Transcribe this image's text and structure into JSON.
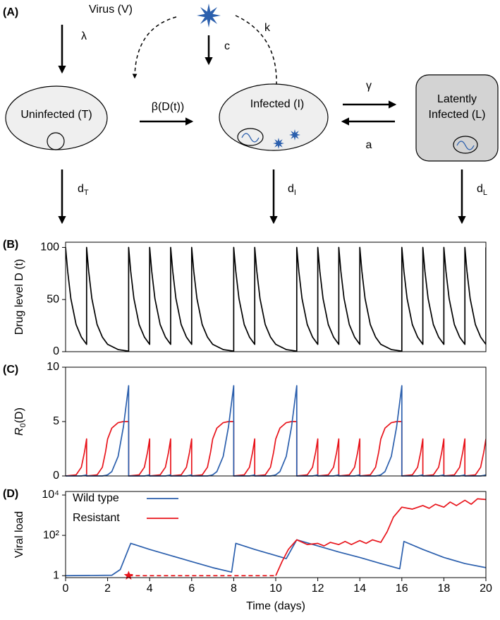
{
  "diagram": {
    "panel_label": "(A)",
    "virus": "Virus (V)",
    "rates": {
      "lambda": "λ",
      "c": "c",
      "k": "k",
      "beta": "β(D(t))",
      "gamma": "γ",
      "a": "a"
    },
    "nodes": [
      {
        "label": "Uninfected (T)",
        "death": {
          "text": "d",
          "sub": "T"
        }
      },
      {
        "label": "Infected (I)",
        "death": {
          "text": "d",
          "sub": "I"
        }
      },
      {
        "label": [
          "Latently",
          "Infected (L)"
        ],
        "death": {
          "text": "d",
          "sub": "L"
        }
      }
    ]
  },
  "chart_data": [
    {
      "type": "line",
      "panel_label": "(B)",
      "y_label": "Drug level D (t)",
      "color": "#000000",
      "xlim": [
        0,
        20
      ],
      "ylim": [
        0,
        105
      ],
      "yticks": [
        0,
        50,
        100
      ],
      "x": [
        0,
        0.1,
        0.25,
        0.5,
        0.75,
        1,
        1,
        1.1,
        1.25,
        1.5,
        1.75,
        2,
        2.5,
        3,
        3,
        3.1,
        3.25,
        3.5,
        3.75,
        4,
        4,
        4.1,
        4.25,
        4.5,
        4.75,
        5,
        5,
        5.1,
        5.25,
        5.5,
        5.75,
        6,
        6,
        6.1,
        6.25,
        6.5,
        6.75,
        7,
        7.5,
        8,
        8,
        8.1,
        8.25,
        8.5,
        8.75,
        9,
        9,
        9.1,
        9.25,
        9.5,
        9.75,
        10,
        10.5,
        11,
        11,
        11.1,
        11.25,
        11.5,
        11.75,
        12,
        12,
        12.1,
        12.25,
        12.5,
        12.75,
        13,
        13,
        13.1,
        13.25,
        13.5,
        13.75,
        14,
        14,
        14.1,
        14.25,
        14.5,
        14.75,
        15,
        15.5,
        16,
        16,
        16.1,
        16.25,
        16.5,
        16.75,
        17,
        17,
        17.1,
        17.25,
        17.5,
        17.75,
        18,
        18,
        18.1,
        18.25,
        18.5,
        18.75,
        19,
        19,
        19.1,
        19.25,
        19.5,
        19.75,
        20,
        20
      ],
      "values": [
        100,
        77,
        51,
        26,
        14,
        7,
        100,
        77,
        51,
        26,
        14,
        7,
        2,
        0.5,
        100,
        77,
        51,
        26,
        14,
        7,
        100,
        77,
        51,
        26,
        14,
        7,
        100,
        77,
        51,
        26,
        14,
        7,
        100,
        77,
        51,
        26,
        14,
        7,
        2,
        0.5,
        100,
        77,
        51,
        26,
        14,
        7,
        100,
        77,
        51,
        26,
        14,
        7,
        2,
        0.5,
        100,
        77,
        51,
        26,
        14,
        7,
        100,
        77,
        51,
        26,
        14,
        7,
        100,
        77,
        51,
        26,
        14,
        7,
        100,
        77,
        51,
        26,
        14,
        7,
        2,
        0.5,
        100,
        77,
        51,
        26,
        14,
        7,
        100,
        77,
        51,
        26,
        14,
        7,
        100,
        77,
        51,
        26,
        14,
        7,
        100,
        77,
        51,
        26,
        14,
        7,
        100
      ]
    },
    {
      "type": "line",
      "panel_label": "(C)",
      "y_label": {
        "text": "R",
        "sub": "0",
        "suffix": "(D)"
      },
      "xlim": [
        0,
        20
      ],
      "ylim": [
        0,
        10
      ],
      "yticks": [
        0,
        5,
        10
      ],
      "x": [
        0,
        0.5,
        0.75,
        0.9,
        1,
        1,
        1.5,
        1.75,
        1.9,
        2,
        2.2,
        2.5,
        2.75,
        3,
        3,
        3.5,
        3.75,
        3.9,
        4,
        4,
        4.5,
        4.75,
        4.9,
        5,
        5,
        5.5,
        5.75,
        5.9,
        6,
        6,
        6.5,
        6.75,
        6.9,
        7,
        7.2,
        7.5,
        7.75,
        8,
        8,
        8.5,
        8.75,
        8.9,
        9,
        9,
        9.5,
        9.75,
        9.9,
        10,
        10.2,
        10.5,
        10.75,
        11,
        11,
        11.5,
        11.75,
        11.9,
        12,
        12,
        12.5,
        12.75,
        12.9,
        13,
        13,
        13.5,
        13.75,
        13.9,
        14,
        14,
        14.5,
        14.75,
        14.9,
        15,
        15.2,
        15.5,
        15.75,
        16,
        16,
        16.5,
        16.75,
        16.9,
        17,
        17,
        17.5,
        17.75,
        17.9,
        18,
        18,
        18.5,
        18.75,
        18.9,
        19,
        19,
        19.5,
        19.75,
        19.9,
        20
      ],
      "series": [
        {
          "name": "Resistant",
          "color": "#e8141b",
          "values": [
            0,
            0.1,
            0.8,
            2.2,
            3.4,
            0,
            0.1,
            0.8,
            2.2,
            3.4,
            4.4,
            4.9,
            5,
            5,
            0,
            0.1,
            0.8,
            2.2,
            3.4,
            0,
            0.1,
            0.8,
            2.2,
            3.4,
            0,
            0.1,
            0.8,
            2.2,
            3.4,
            0,
            0.1,
            0.8,
            2.2,
            3.4,
            4.4,
            4.9,
            5,
            5,
            0,
            0.1,
            0.8,
            2.2,
            3.4,
            0,
            0.1,
            0.8,
            2.2,
            3.4,
            4.4,
            4.9,
            5,
            5,
            0,
            0.1,
            0.8,
            2.2,
            3.4,
            0,
            0.1,
            0.8,
            2.2,
            3.4,
            0,
            0.1,
            0.8,
            2.2,
            3.4,
            0,
            0.1,
            0.8,
            2.2,
            3.4,
            4.4,
            4.9,
            5,
            5,
            0,
            0.1,
            0.8,
            2.2,
            3.4,
            0,
            0.1,
            0.8,
            2.2,
            3.4,
            0,
            0.1,
            0.8,
            2.2,
            3.4,
            0,
            0.1,
            0.8,
            2.2,
            3.4
          ]
        },
        {
          "name": "Wild type",
          "color": "#2b5fad",
          "values": [
            0,
            0,
            0,
            0.05,
            0.1,
            0,
            0,
            0,
            0.05,
            0.1,
            0.4,
            1.8,
            4.5,
            8.3,
            0,
            0,
            0,
            0.05,
            0.1,
            0,
            0,
            0,
            0.05,
            0.1,
            0,
            0,
            0,
            0.05,
            0.1,
            0,
            0,
            0,
            0.05,
            0.1,
            0.4,
            1.8,
            4.5,
            8.3,
            0,
            0,
            0,
            0.05,
            0.1,
            0,
            0,
            0,
            0.05,
            0.1,
            0.4,
            1.8,
            4.5,
            8.3,
            0,
            0,
            0,
            0.05,
            0.1,
            0,
            0,
            0,
            0.05,
            0.1,
            0,
            0,
            0,
            0.05,
            0.1,
            0,
            0,
            0,
            0.05,
            0.1,
            0.4,
            1.8,
            4.5,
            8.3,
            0,
            0,
            0,
            0.05,
            0.1,
            0,
            0,
            0,
            0.05,
            0.1,
            0,
            0,
            0,
            0.05,
            0.1,
            0,
            0,
            0,
            0.05,
            0.1
          ]
        }
      ]
    },
    {
      "type": "line",
      "panel_label": "(D)",
      "y_label": "Viral load",
      "x_label": "Time (days)",
      "log_y": true,
      "legend": "upper left",
      "xlim": [
        0,
        20
      ],
      "ylim": [
        0.8,
        15000
      ],
      "xticks": [
        0,
        2,
        4,
        6,
        8,
        10,
        12,
        14,
        16,
        18,
        20
      ],
      "yticks": [
        1,
        {
          "value": 100,
          "label": "10²"
        },
        {
          "value": 10000,
          "label": "10⁴"
        }
      ],
      "series": [
        {
          "name": "Wild type",
          "color": "#2b5fad",
          "x": [
            0,
            2.2,
            2.6,
            3.1,
            4,
            5,
            6,
            7,
            7.9,
            8.1,
            9,
            10,
            10.5,
            11,
            12,
            13,
            14,
            15,
            15.9,
            16.1,
            17,
            18,
            19,
            20
          ],
          "values": [
            1,
            1.05,
            2,
            40,
            20,
            10,
            5,
            2.5,
            1.5,
            40,
            20,
            10,
            7,
            60,
            30,
            15,
            8,
            4,
            2.2,
            50,
            20,
            8,
            4,
            2.5
          ]
        },
        {
          "name": "Resistant",
          "color": "#e8141b",
          "x": [
            10,
            10.3,
            10.6,
            11,
            11.5,
            12,
            12.3,
            12.6,
            13,
            13.3,
            13.6,
            14,
            14.3,
            14.6,
            15,
            15.3,
            15.6,
            16,
            16.5,
            17,
            17.3,
            17.6,
            18,
            18.3,
            18.6,
            19,
            19.3,
            19.6,
            20
          ],
          "values": [
            1,
            5,
            20,
            60,
            35,
            40,
            30,
            45,
            35,
            50,
            35,
            55,
            40,
            60,
            45,
            150,
            800,
            2500,
            2000,
            3000,
            2200,
            3500,
            2500,
            4500,
            3000,
            5500,
            3500,
            6500,
            6000
          ]
        }
      ],
      "emergence": {
        "x": 3,
        "x_end": 10,
        "y": 1,
        "color": "#e8141b"
      }
    }
  ]
}
